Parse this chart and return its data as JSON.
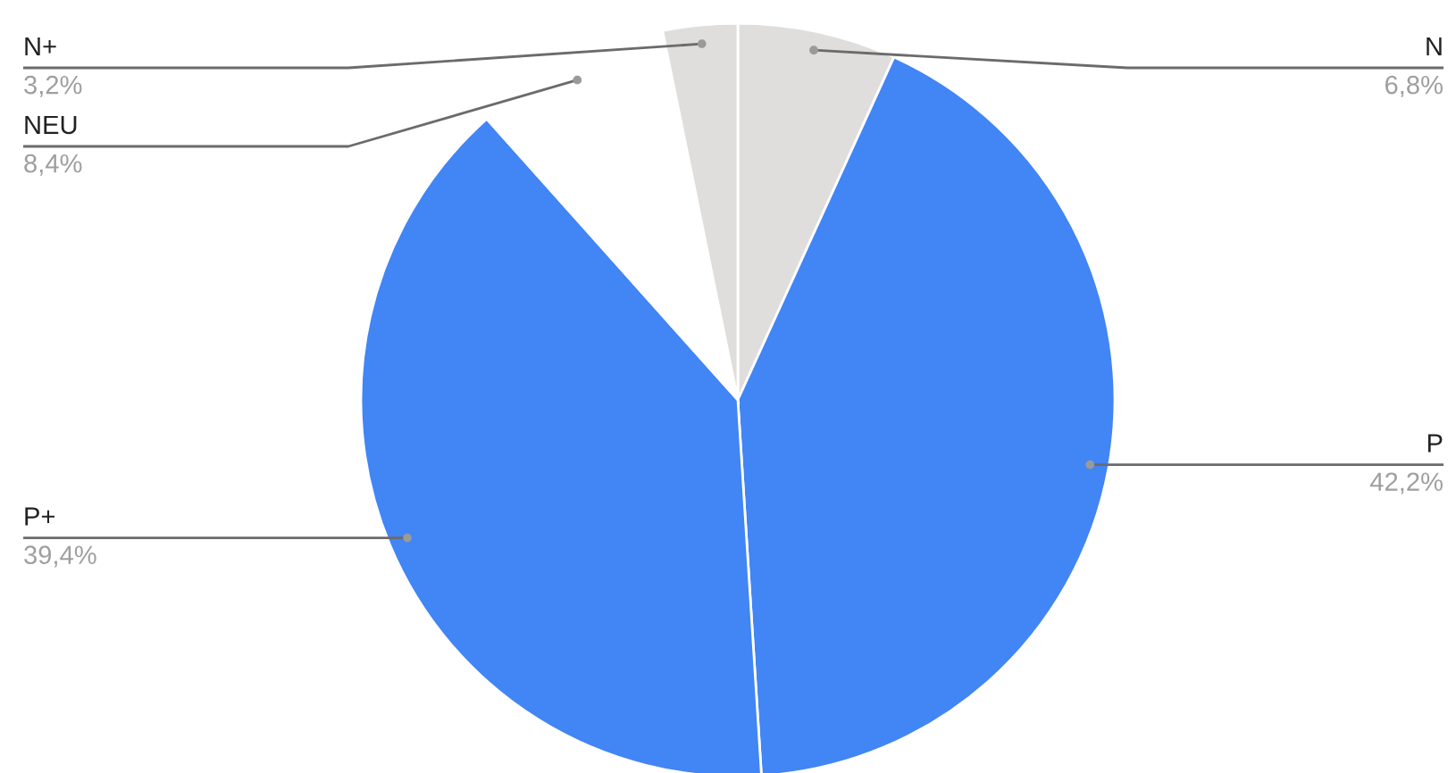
{
  "chart_data": {
    "type": "pie",
    "categories": [
      "N",
      "P",
      "P+",
      "NEU",
      "N+"
    ],
    "values": [
      6.8,
      42.2,
      39.4,
      8.4,
      3.2
    ],
    "colors": [
      "#e0dedc",
      "#4285f4",
      "#4285f4",
      "#ffffff",
      "#e0dedc"
    ],
    "value_labels": [
      "6,8%",
      "42,2%",
      "39,4%",
      "8,4%",
      "3,2%"
    ]
  }
}
